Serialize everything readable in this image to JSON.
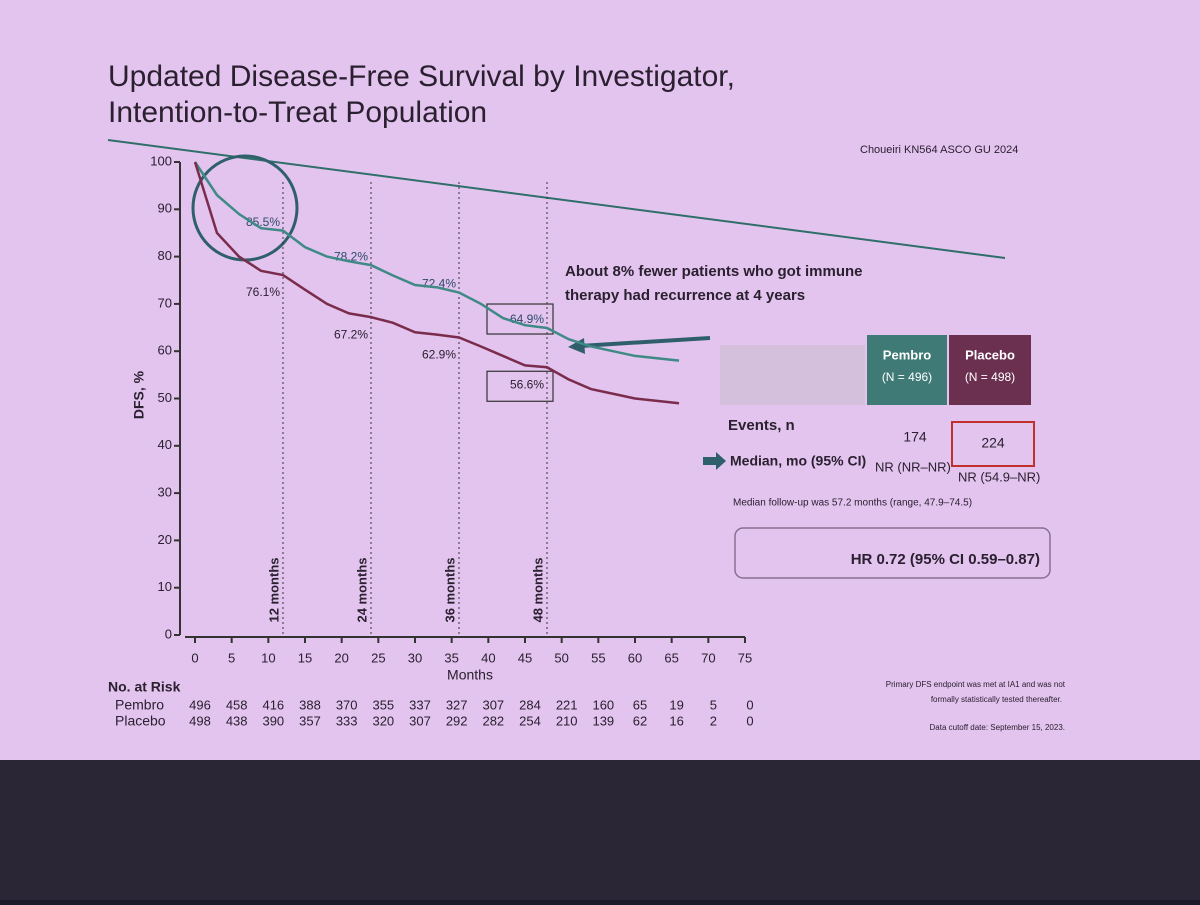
{
  "chart_data": {
    "type": "line",
    "title": "Updated Disease-Free Survival by Investigator,",
    "subtitle": "Intention-to-Treat Population",
    "citation": "Choueiri KN564 ASCO GU 2024",
    "xlabel": "Months",
    "ylabel": "DFS, %",
    "x": [
      0,
      3,
      6,
      9,
      12,
      15,
      18,
      21,
      24,
      27,
      30,
      33,
      36,
      39,
      42,
      45,
      48,
      51,
      54,
      57,
      60,
      63,
      66
    ],
    "series": [
      {
        "name": "Pembro",
        "color": "#3f8a86",
        "values": [
          100,
          93,
          89,
          86,
          85.5,
          82,
          80,
          79,
          78.2,
          76,
          74,
          73.5,
          72.4,
          70,
          67,
          65.5,
          64.9,
          62.5,
          61,
          60,
          59,
          58.5,
          58
        ]
      },
      {
        "name": "Placebo",
        "color": "#7a2c4c",
        "values": [
          100,
          85,
          80,
          77,
          76.1,
          73,
          70,
          68,
          67.2,
          66,
          64,
          63.5,
          62.9,
          61,
          59,
          57,
          56.6,
          54,
          52,
          51,
          50,
          49.5,
          49
        ]
      }
    ],
    "xlim": [
      0,
      75
    ],
    "xticks": [
      0,
      5,
      10,
      15,
      20,
      25,
      30,
      35,
      40,
      45,
      50,
      55,
      60,
      65,
      70,
      75
    ],
    "ylim": [
      0,
      100
    ],
    "yticks": [
      0,
      10,
      20,
      30,
      40,
      50,
      60,
      70,
      80,
      90,
      100
    ],
    "landmarks": [
      {
        "month": 12,
        "label": "12 months",
        "pembro": 85.5,
        "pembro_label": "85.5%",
        "placebo": 76.1,
        "placebo_label": "76.1%"
      },
      {
        "month": 24,
        "label": "24 months",
        "pembro": 78.2,
        "pembro_label": "78.2%",
        "placebo": 67.2,
        "placebo_label": "67.2%"
      },
      {
        "month": 36,
        "label": "36 months",
        "pembro": 72.4,
        "pembro_label": "72.4%",
        "placebo": 62.9,
        "placebo_label": "62.9%"
      },
      {
        "month": 48,
        "label": "48 months",
        "pembro": 64.9,
        "pembro_label": "64.9%",
        "placebo": 56.6,
        "placebo_label": "56.6%"
      }
    ],
    "annotation": [
      "About 8% fewer patients who got immune",
      "therapy had recurrence at 4 years"
    ],
    "risk_table": {
      "title": "No. at Risk",
      "rows": [
        {
          "name": "Pembro",
          "values": [
            496,
            458,
            416,
            388,
            370,
            355,
            337,
            327,
            307,
            284,
            221,
            160,
            65,
            19,
            5,
            0
          ]
        },
        {
          "name": "Placebo",
          "values": [
            498,
            438,
            390,
            357,
            333,
            320,
            307,
            292,
            282,
            254,
            210,
            139,
            62,
            16,
            2,
            0
          ]
        }
      ]
    },
    "summary_table": {
      "headers": [
        [
          "Pembro",
          "(N = 496)"
        ],
        [
          "Placebo",
          "(N = 498)"
        ]
      ],
      "rows": [
        {
          "label": "Events, n",
          "cells": [
            "174",
            "224"
          ]
        },
        {
          "label": "Median, mo (95% CI)",
          "cells": [
            "NR (NR–NR)",
            "NR (54.9–NR)"
          ]
        }
      ],
      "note": "Median follow-up was 57.2 months (range, 47.9–74.5)",
      "hr": "HR 0.72 (95% CI 0.59–0.87)"
    },
    "footnotes": [
      "Primary DFS endpoint was met at IA1 and was not",
      "formally statistically tested thereafter.",
      "Data cutoff date: September 15, 2023."
    ]
  }
}
